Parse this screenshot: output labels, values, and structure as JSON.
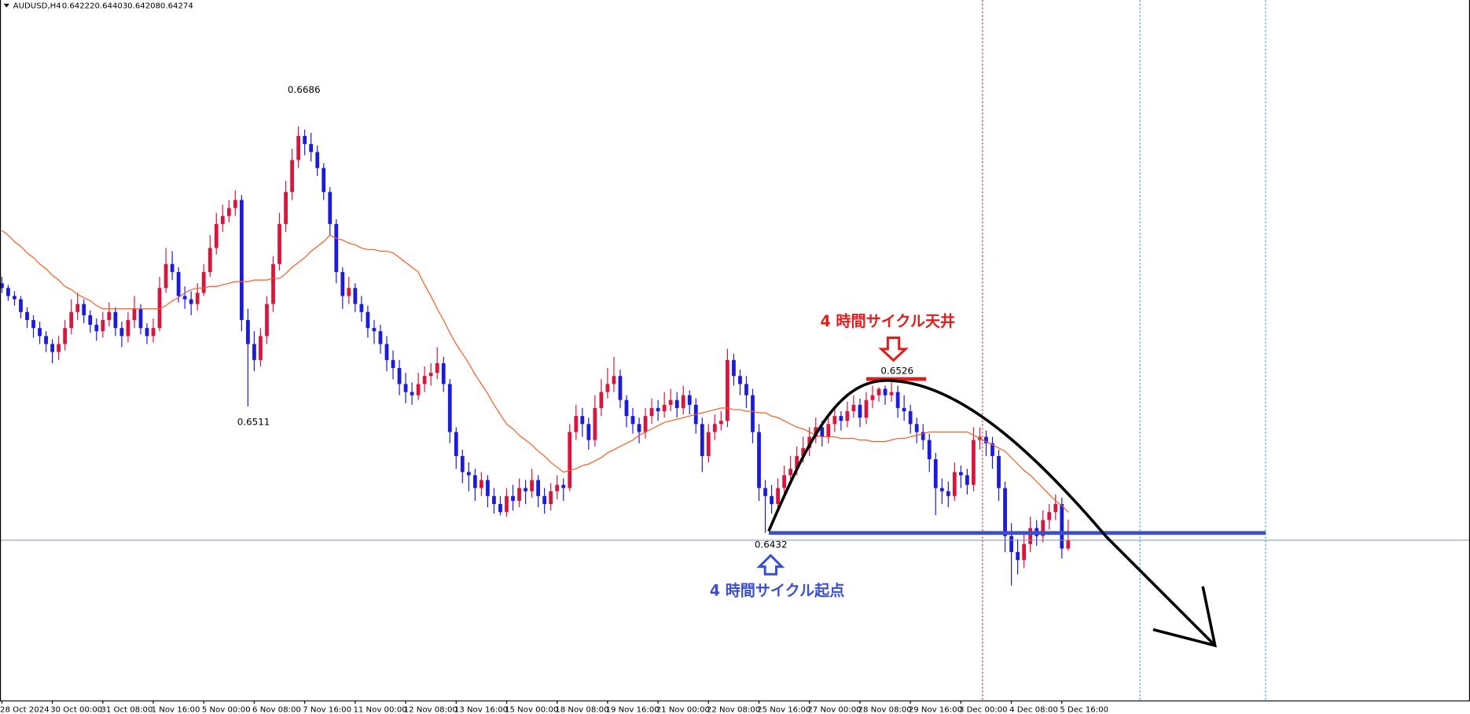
{
  "chart_data": {
    "type": "candlestick",
    "symbol": "AUDUSD,H4",
    "categories": [
      "28 Oct 2024",
      null,
      null,
      null,
      null,
      null,
      null,
      null,
      "30 Oct 00:00",
      null,
      null,
      null,
      null,
      null,
      null,
      null,
      "31 Oct 08:00",
      null,
      null,
      null,
      null,
      null,
      null,
      null,
      "1 Nov 16:00",
      null,
      null,
      null,
      null,
      null,
      null,
      null,
      "5 Nov 00:00",
      null,
      null,
      null,
      null,
      null,
      null,
      null,
      "6 Nov 08:00",
      null,
      null,
      null,
      null,
      null,
      null,
      null,
      "7 Nov 16:00",
      null,
      null,
      null,
      null,
      null,
      null,
      null,
      "11 Nov 00:00",
      null,
      null,
      null,
      null,
      null,
      null,
      null,
      "12 Nov 08:00",
      null,
      null,
      null,
      null,
      null,
      null,
      null,
      "13 Nov 16:00",
      null,
      null,
      null,
      null,
      null,
      null,
      null,
      "15 Nov 00:00",
      null,
      null,
      null,
      null,
      null,
      null,
      null,
      "18 Nov 08:00",
      null,
      null,
      null,
      null,
      null,
      null,
      null,
      "19 Nov 16:00",
      null,
      null,
      null,
      null,
      null,
      null,
      null,
      "21 Nov 00:00",
      null,
      null,
      null,
      null,
      null,
      null,
      null,
      "22 Nov 08:00",
      null,
      null,
      null,
      null,
      null,
      null,
      null,
      "25 Nov 16:00",
      null,
      null,
      null,
      null,
      null,
      null,
      null,
      "27 Nov 00:00",
      null,
      null,
      null,
      null,
      null,
      null,
      null,
      "28 Nov 08:00",
      null,
      null,
      null,
      null,
      null,
      null,
      null,
      "29 Nov 16:00",
      null,
      null,
      null,
      null,
      null,
      null,
      null,
      "3 Dec 00:00",
      null,
      null,
      null,
      null,
      null,
      null,
      null,
      "4 Dec 08:00",
      null,
      null,
      null,
      null,
      null,
      null,
      null,
      "5 Dec 16:00",
      null
    ],
    "ohlc": [
      [
        0.6588,
        0.6592,
        0.6582,
        0.6585
      ],
      [
        0.6585,
        0.6587,
        0.6577,
        0.658
      ],
      [
        0.658,
        0.6583,
        0.6574,
        0.6578
      ],
      [
        0.6578,
        0.658,
        0.6566,
        0.657
      ],
      [
        0.657,
        0.6573,
        0.656,
        0.6565
      ],
      [
        0.6565,
        0.6568,
        0.6554,
        0.656
      ],
      [
        0.656,
        0.6564,
        0.655,
        0.6555
      ],
      [
        0.6555,
        0.6558,
        0.6545,
        0.655
      ],
      [
        0.655,
        0.6553,
        0.6538,
        0.6545
      ],
      [
        0.6545,
        0.6555,
        0.654,
        0.655
      ],
      [
        0.655,
        0.6565,
        0.6546,
        0.656
      ],
      [
        0.656,
        0.6578,
        0.6556,
        0.657
      ],
      [
        0.657,
        0.6582,
        0.6565,
        0.6575
      ],
      [
        0.6575,
        0.6578,
        0.6563,
        0.6568
      ],
      [
        0.6568,
        0.6571,
        0.6557,
        0.6562
      ],
      [
        0.6562,
        0.6566,
        0.6552,
        0.6558
      ],
      [
        0.6558,
        0.657,
        0.6554,
        0.6565
      ],
      [
        0.6565,
        0.6576,
        0.6561,
        0.657
      ],
      [
        0.657,
        0.6573,
        0.6555,
        0.656
      ],
      [
        0.656,
        0.6564,
        0.6548,
        0.6555
      ],
      [
        0.6555,
        0.657,
        0.6551,
        0.6565
      ],
      [
        0.6565,
        0.658,
        0.656,
        0.6572
      ],
      [
        0.6572,
        0.6575,
        0.6556,
        0.656
      ],
      [
        0.656,
        0.6563,
        0.655,
        0.6555
      ],
      [
        0.6555,
        0.6566,
        0.6551,
        0.656
      ],
      [
        0.656,
        0.6592,
        0.6558,
        0.6585
      ],
      [
        0.6585,
        0.661,
        0.6582,
        0.66
      ],
      [
        0.66,
        0.6608,
        0.659,
        0.6595
      ],
      [
        0.6595,
        0.6598,
        0.6576,
        0.658
      ],
      [
        0.658,
        0.6586,
        0.6572,
        0.6578
      ],
      [
        0.6578,
        0.6583,
        0.6568,
        0.6575
      ],
      [
        0.6575,
        0.6588,
        0.6571,
        0.6582
      ],
      [
        0.6582,
        0.66,
        0.658,
        0.6595
      ],
      [
        0.6595,
        0.6618,
        0.6592,
        0.661
      ],
      [
        0.661,
        0.6632,
        0.6606,
        0.6625
      ],
      [
        0.6625,
        0.6637,
        0.662,
        0.663
      ],
      [
        0.663,
        0.664,
        0.6626,
        0.6635
      ],
      [
        0.6635,
        0.6646,
        0.663,
        0.664
      ],
      [
        0.664,
        0.6643,
        0.6558,
        0.6565
      ],
      [
        0.6565,
        0.6572,
        0.6511,
        0.655
      ],
      [
        0.655,
        0.6558,
        0.6533,
        0.654
      ],
      [
        0.654,
        0.656,
        0.6536,
        0.6555
      ],
      [
        0.6555,
        0.658,
        0.655,
        0.6575
      ],
      [
        0.6575,
        0.6605,
        0.657,
        0.66
      ],
      [
        0.66,
        0.6632,
        0.6596,
        0.6625
      ],
      [
        0.6625,
        0.6652,
        0.662,
        0.6645
      ],
      [
        0.6645,
        0.6672,
        0.664,
        0.6665
      ],
      [
        0.6665,
        0.6686,
        0.666,
        0.668
      ],
      [
        0.668,
        0.6684,
        0.6668,
        0.6675
      ],
      [
        0.6675,
        0.6682,
        0.6664,
        0.667
      ],
      [
        0.667,
        0.6674,
        0.6655,
        0.666
      ],
      [
        0.666,
        0.6663,
        0.664,
        0.6645
      ],
      [
        0.6645,
        0.6648,
        0.6618,
        0.6625
      ],
      [
        0.6625,
        0.6628,
        0.6588,
        0.6595
      ],
      [
        0.6595,
        0.6598,
        0.6572,
        0.658
      ],
      [
        0.658,
        0.6592,
        0.6575,
        0.6585
      ],
      [
        0.6585,
        0.6588,
        0.657,
        0.6575
      ],
      [
        0.6575,
        0.658,
        0.6564,
        0.657
      ],
      [
        0.657,
        0.6574,
        0.6554,
        0.656
      ],
      [
        0.656,
        0.6565,
        0.655,
        0.6558
      ],
      [
        0.6558,
        0.6562,
        0.6544,
        0.655
      ],
      [
        0.655,
        0.6555,
        0.6533,
        0.654
      ],
      [
        0.654,
        0.6546,
        0.6528,
        0.6535
      ],
      [
        0.6535,
        0.654,
        0.6518,
        0.6525
      ],
      [
        0.6525,
        0.6532,
        0.6513,
        0.652
      ],
      [
        0.652,
        0.6526,
        0.6512,
        0.6518
      ],
      [
        0.6518,
        0.6532,
        0.6515,
        0.6525
      ],
      [
        0.6525,
        0.6536,
        0.652,
        0.653
      ],
      [
        0.653,
        0.6538,
        0.6524,
        0.6532
      ],
      [
        0.6532,
        0.6548,
        0.6528,
        0.6538
      ],
      [
        0.6538,
        0.6542,
        0.652,
        0.6525
      ],
      [
        0.6525,
        0.6528,
        0.6488,
        0.6495
      ],
      [
        0.6495,
        0.6498,
        0.6472,
        0.648
      ],
      [
        0.648,
        0.6484,
        0.6463,
        0.647
      ],
      [
        0.647,
        0.6476,
        0.6458,
        0.6468
      ],
      [
        0.6468,
        0.6472,
        0.6452,
        0.646
      ],
      [
        0.646,
        0.647,
        0.6455,
        0.6465
      ],
      [
        0.6465,
        0.6468,
        0.6448,
        0.6455
      ],
      [
        0.6455,
        0.646,
        0.6444,
        0.645
      ],
      [
        0.645,
        0.6455,
        0.6443,
        0.6445
      ],
      [
        0.6445,
        0.646,
        0.6442,
        0.6455
      ],
      [
        0.6455,
        0.6462,
        0.6446,
        0.6452
      ],
      [
        0.6452,
        0.6466,
        0.6448,
        0.646
      ],
      [
        0.646,
        0.6465,
        0.645,
        0.6458
      ],
      [
        0.6458,
        0.6472,
        0.6454,
        0.6465
      ],
      [
        0.6465,
        0.6468,
        0.6448,
        0.6455
      ],
      [
        0.6455,
        0.646,
        0.6444,
        0.645
      ],
      [
        0.645,
        0.6463,
        0.6446,
        0.6458
      ],
      [
        0.6458,
        0.6468,
        0.6453,
        0.6462
      ],
      [
        0.6462,
        0.6466,
        0.6452,
        0.646
      ],
      [
        0.646,
        0.65,
        0.6458,
        0.6495
      ],
      [
        0.6495,
        0.6512,
        0.649,
        0.6505
      ],
      [
        0.6505,
        0.651,
        0.6492,
        0.65
      ],
      [
        0.65,
        0.6504,
        0.6484,
        0.649
      ],
      [
        0.649,
        0.6518,
        0.6486,
        0.651
      ],
      [
        0.651,
        0.6528,
        0.6505,
        0.652
      ],
      [
        0.652,
        0.6535,
        0.6516,
        0.6525
      ],
      [
        0.6525,
        0.6542,
        0.652,
        0.653
      ],
      [
        0.653,
        0.6534,
        0.651,
        0.6515
      ],
      [
        0.6515,
        0.6518,
        0.6498,
        0.6505
      ],
      [
        0.6505,
        0.651,
        0.6494,
        0.65
      ],
      [
        0.65,
        0.6504,
        0.6488,
        0.6495
      ],
      [
        0.6495,
        0.651,
        0.6491,
        0.6505
      ],
      [
        0.6505,
        0.6516,
        0.65,
        0.651
      ],
      [
        0.651,
        0.6515,
        0.6502,
        0.6508
      ],
      [
        0.6508,
        0.652,
        0.6504,
        0.6512
      ],
      [
        0.6512,
        0.6522,
        0.6508,
        0.6515
      ],
      [
        0.6515,
        0.652,
        0.6504,
        0.651
      ],
      [
        0.651,
        0.6524,
        0.6506,
        0.6518
      ],
      [
        0.6518,
        0.6521,
        0.6506,
        0.6512
      ],
      [
        0.6512,
        0.6516,
        0.6494,
        0.65
      ],
      [
        0.65,
        0.6504,
        0.647,
        0.648
      ],
      [
        0.648,
        0.65,
        0.6476,
        0.6495
      ],
      [
        0.6495,
        0.6506,
        0.649,
        0.65
      ],
      [
        0.65,
        0.6508,
        0.6496,
        0.6502
      ],
      [
        0.6502,
        0.6547,
        0.6498,
        0.654
      ],
      [
        0.654,
        0.6544,
        0.6524,
        0.653
      ],
      [
        0.653,
        0.6534,
        0.6518,
        0.6525
      ],
      [
        0.6525,
        0.653,
        0.651,
        0.6518
      ],
      [
        0.6518,
        0.6522,
        0.6488,
        0.6495
      ],
      [
        0.6495,
        0.65,
        0.6452,
        0.646
      ],
      [
        0.646,
        0.6465,
        0.6432,
        0.6455
      ],
      [
        0.6455,
        0.6462,
        0.6444,
        0.645
      ],
      [
        0.645,
        0.6466,
        0.6446,
        0.646
      ],
      [
        0.646,
        0.6474,
        0.6456,
        0.6468
      ],
      [
        0.6468,
        0.648,
        0.6462,
        0.6472
      ],
      [
        0.6472,
        0.6486,
        0.6468,
        0.648
      ],
      [
        0.648,
        0.6492,
        0.6476,
        0.6485
      ],
      [
        0.6485,
        0.6498,
        0.648,
        0.6492
      ],
      [
        0.6492,
        0.6504,
        0.6488,
        0.6498
      ],
      [
        0.6498,
        0.6502,
        0.6486,
        0.6492
      ],
      [
        0.6492,
        0.6506,
        0.6488,
        0.65
      ],
      [
        0.65,
        0.651,
        0.6495,
        0.6505
      ],
      [
        0.6505,
        0.6508,
        0.6496,
        0.6502
      ],
      [
        0.6502,
        0.6514,
        0.6498,
        0.6508
      ],
      [
        0.6508,
        0.6518,
        0.6504,
        0.6512
      ],
      [
        0.6512,
        0.6516,
        0.6498,
        0.6504
      ],
      [
        0.6504,
        0.652,
        0.65,
        0.6515
      ],
      [
        0.6515,
        0.6524,
        0.651,
        0.6518
      ],
      [
        0.6518,
        0.6523,
        0.6514,
        0.6522
      ],
      [
        0.6522,
        0.6524,
        0.6512,
        0.6518
      ],
      [
        0.6518,
        0.6526,
        0.6514,
        0.652
      ],
      [
        0.652,
        0.6524,
        0.6504,
        0.651
      ],
      [
        0.651,
        0.6518,
        0.6502,
        0.6508
      ],
      [
        0.6508,
        0.6512,
        0.6494,
        0.65
      ],
      [
        0.65,
        0.6504,
        0.6488,
        0.6495
      ],
      [
        0.6495,
        0.65,
        0.6484,
        0.649
      ],
      [
        0.649,
        0.6494,
        0.647,
        0.6478
      ],
      [
        0.6478,
        0.6482,
        0.6443,
        0.646
      ],
      [
        0.646,
        0.6466,
        0.645,
        0.6458
      ],
      [
        0.6458,
        0.6464,
        0.6448,
        0.6455
      ],
      [
        0.6455,
        0.6476,
        0.6452,
        0.647
      ],
      [
        0.647,
        0.6474,
        0.646,
        0.6468
      ],
      [
        0.6468,
        0.6472,
        0.6456,
        0.6462
      ],
      [
        0.6462,
        0.6498,
        0.6458,
        0.649
      ],
      [
        0.649,
        0.6498,
        0.6484,
        0.6492
      ],
      [
        0.6492,
        0.6496,
        0.648,
        0.6488
      ],
      [
        0.6488,
        0.6492,
        0.6472,
        0.648
      ],
      [
        0.648,
        0.6484,
        0.6452,
        0.646
      ],
      [
        0.646,
        0.6464,
        0.642,
        0.643
      ],
      [
        0.643,
        0.6438,
        0.6399,
        0.642
      ],
      [
        0.642,
        0.6428,
        0.6406,
        0.6415
      ],
      [
        0.6415,
        0.6432,
        0.641,
        0.6425
      ],
      [
        0.6425,
        0.6442,
        0.642,
        0.6435
      ],
      [
        0.6435,
        0.644,
        0.6424,
        0.643
      ],
      [
        0.643,
        0.6446,
        0.6426,
        0.644
      ],
      [
        0.644,
        0.645,
        0.6434,
        0.6445
      ],
      [
        0.6445,
        0.6456,
        0.644,
        0.645
      ],
      [
        0.645,
        0.6454,
        0.6416,
        0.64222
      ],
      [
        0.64222,
        0.64403,
        0.64208,
        0.64274
      ]
    ],
    "up_color": "#dc143c",
    "down_color": "#1a1ae0",
    "ma": {
      "color": "#ff5a1f",
      "values": [
        0.6621,
        0.6618,
        0.6614,
        0.6611,
        0.6607,
        0.6604,
        0.66,
        0.6597,
        0.6593,
        0.659,
        0.6586,
        0.6584,
        0.6581,
        0.6579,
        0.6577,
        0.6574,
        0.6572,
        0.6572,
        0.6572,
        0.6572,
        0.6572,
        0.6572,
        0.6572,
        0.6572,
        0.6572,
        0.6572,
        0.6574,
        0.6577,
        0.6579,
        0.6582,
        0.6584,
        0.6585,
        0.6585,
        0.6586,
        0.6586,
        0.6587,
        0.6588,
        0.6589,
        0.6589,
        0.6589,
        0.659,
        0.659,
        0.659,
        0.6591,
        0.6591,
        0.6594,
        0.6598,
        0.6601,
        0.6604,
        0.6608,
        0.6611,
        0.6614,
        0.6618,
        0.6616,
        0.6615,
        0.6613,
        0.6612,
        0.661,
        0.6609,
        0.6609,
        0.6608,
        0.6608,
        0.6607,
        0.6604,
        0.6601,
        0.6598,
        0.6595,
        0.6587,
        0.658,
        0.6572,
        0.6565,
        0.6557,
        0.655,
        0.6544,
        0.6538,
        0.6531,
        0.6525,
        0.6519,
        0.6512,
        0.6506,
        0.65,
        0.6497,
        0.6493,
        0.649,
        0.6487,
        0.6483,
        0.648,
        0.6476,
        0.6473,
        0.647,
        0.6471,
        0.6472,
        0.6474,
        0.6475,
        0.6477,
        0.6479,
        0.6482,
        0.6484,
        0.6486,
        0.6488,
        0.649,
        0.6493,
        0.6495,
        0.6497,
        0.6499,
        0.6501,
        0.6502,
        0.6503,
        0.6504,
        0.6505,
        0.6506,
        0.6507,
        0.6508,
        0.6509,
        0.651,
        0.651,
        0.6509,
        0.6509,
        0.6508,
        0.6508,
        0.6507,
        0.6507,
        0.6505,
        0.6504,
        0.6502,
        0.65,
        0.6498,
        0.6497,
        0.6495,
        0.6493,
        0.6492,
        0.6492,
        0.6492,
        0.6491,
        0.6491,
        0.6491,
        0.649,
        0.649,
        0.6489,
        0.6489,
        0.6489,
        0.649,
        0.6491,
        0.6491,
        0.6492,
        0.6493,
        0.6494,
        0.6495,
        0.6495,
        0.6495,
        0.6495,
        0.6495,
        0.6495,
        0.6495,
        0.6493,
        0.6491,
        0.6489,
        0.6487,
        0.6485,
        0.6483,
        0.6479,
        0.6475,
        0.6471,
        0.6468,
        0.6464,
        0.646,
        0.6456,
        0.6452,
        0.6449,
        0.6445
      ]
    },
    "ylim": [
      0.6327,
      0.6765
    ],
    "annotations": [
      "4 時間サイクル天井",
      "4 時間サイクル起点"
    ]
  }
}
